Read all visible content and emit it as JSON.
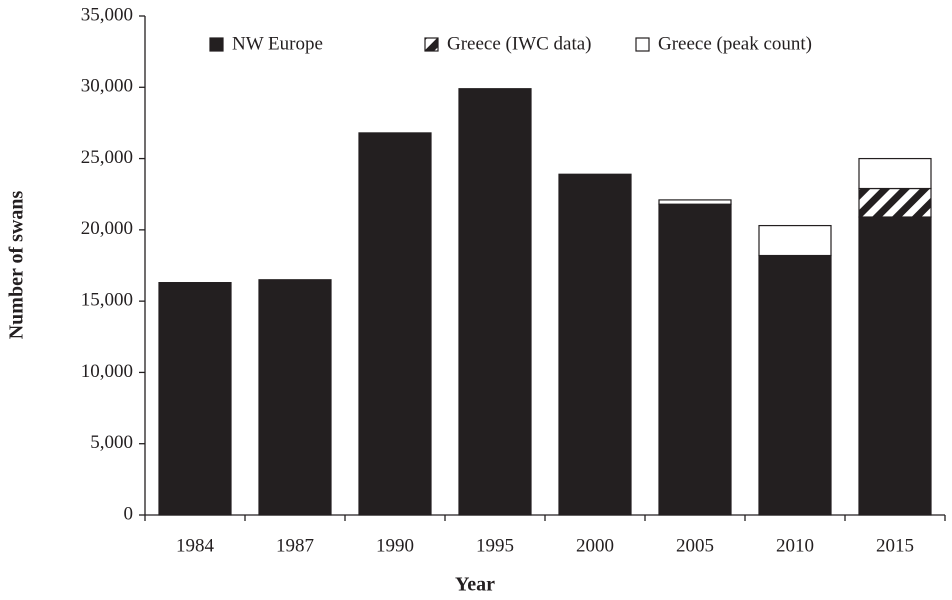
{
  "chart_data": {
    "type": "stacked-bar",
    "x_label": "Year",
    "y_label": "Number of swans",
    "categories": [
      "1984",
      "1987",
      "1990",
      "1995",
      "2000",
      "2005",
      "2010",
      "2015"
    ],
    "series": [
      {
        "name": "NW Europe",
        "color": "#231f20",
        "values": [
          16300,
          16500,
          26800,
          29900,
          23900,
          21800,
          18200,
          20900
        ]
      },
      {
        "name": "Greece (IWC data)",
        "color": "#231f20",
        "pattern": "hatch",
        "values": [
          null,
          null,
          null,
          null,
          null,
          null,
          null,
          2000
        ]
      },
      {
        "name": "Greece (peak count)",
        "color": "#ffffff",
        "values": [
          null,
          null,
          null,
          null,
          null,
          300,
          2100,
          2100
        ]
      }
    ],
    "ylim": [
      0,
      35000
    ],
    "yticks": [
      0,
      {
        "value": 5000,
        "label": "5,000"
      },
      {
        "value": 10000,
        "label": "10,000"
      },
      {
        "value": 15000,
        "label": "15,000"
      },
      {
        "value": 20000,
        "label": "20,000"
      },
      {
        "value": 25000,
        "label": "25,000"
      },
      {
        "value": 30000,
        "label": "30,000"
      },
      {
        "value": 35000,
        "label": "35,000"
      }
    ],
    "grid": false,
    "legend": "top"
  }
}
